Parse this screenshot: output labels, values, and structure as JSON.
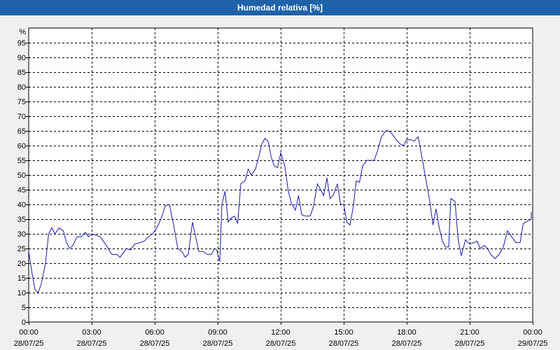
{
  "window": {
    "title": "Humedad relativa [%]"
  },
  "chart_data": {
    "type": "line",
    "title": "Humedad relativa [%]",
    "y_unit_label": "%",
    "ylim": [
      0,
      100
    ],
    "yticks": [
      0,
      5,
      10,
      15,
      20,
      25,
      30,
      35,
      40,
      45,
      50,
      55,
      60,
      65,
      70,
      75,
      80,
      85,
      90,
      95
    ],
    "xlim": [
      0,
      24
    ],
    "xticks": [
      {
        "hour": 0,
        "time": "00:00",
        "date": "28/07/25"
      },
      {
        "hour": 3,
        "time": "03:00",
        "date": "28/07/25"
      },
      {
        "hour": 6,
        "time": "06:00",
        "date": "28/07/25"
      },
      {
        "hour": 9,
        "time": "09:00",
        "date": "28/07/25"
      },
      {
        "hour": 12,
        "time": "12:00",
        "date": "28/07/25"
      },
      {
        "hour": 15,
        "time": "15:00",
        "date": "28/07/25"
      },
      {
        "hour": 18,
        "time": "18:00",
        "date": "28/07/25"
      },
      {
        "hour": 21,
        "time": "21:00",
        "date": "28/07/25"
      },
      {
        "hour": 24,
        "time": "00:00",
        "date": "29/07/25"
      }
    ],
    "grid": true,
    "line_color": "#1a1aa8",
    "series": [
      {
        "name": "",
        "points": [
          [
            0.0,
            24
          ],
          [
            0.15,
            17
          ],
          [
            0.3,
            11
          ],
          [
            0.45,
            10
          ],
          [
            0.6,
            13
          ],
          [
            0.8,
            20
          ],
          [
            0.95,
            30
          ],
          [
            1.1,
            32
          ],
          [
            1.25,
            30
          ],
          [
            1.45,
            32
          ],
          [
            1.65,
            31
          ],
          [
            1.8,
            27
          ],
          [
            1.95,
            25
          ],
          [
            2.1,
            26
          ],
          [
            2.3,
            29
          ],
          [
            2.5,
            29
          ],
          [
            2.7,
            30.5
          ],
          [
            2.85,
            29
          ],
          [
            3.0,
            30
          ],
          [
            3.2,
            29.5
          ],
          [
            3.4,
            29
          ],
          [
            3.7,
            26
          ],
          [
            3.95,
            23
          ],
          [
            4.2,
            23
          ],
          [
            4.35,
            22
          ],
          [
            4.65,
            25
          ],
          [
            4.85,
            24.5
          ],
          [
            5.05,
            26.5
          ],
          [
            5.3,
            27
          ],
          [
            5.5,
            27.5
          ],
          [
            5.7,
            29
          ],
          [
            5.9,
            30
          ],
          [
            6.1,
            32
          ],
          [
            6.3,
            35
          ],
          [
            6.5,
            39.5
          ],
          [
            6.7,
            40
          ],
          [
            6.9,
            33
          ],
          [
            7.1,
            25
          ],
          [
            7.3,
            24
          ],
          [
            7.45,
            22
          ],
          [
            7.6,
            23
          ],
          [
            7.8,
            34
          ],
          [
            7.95,
            29
          ],
          [
            8.1,
            24
          ],
          [
            8.3,
            24
          ],
          [
            8.5,
            23
          ],
          [
            8.7,
            23
          ],
          [
            8.85,
            25
          ],
          [
            8.95,
            24.5
          ],
          [
            9.1,
            20.5
          ],
          [
            9.2,
            40
          ],
          [
            9.35,
            44.5
          ],
          [
            9.5,
            34
          ],
          [
            9.65,
            35.5
          ],
          [
            9.8,
            36
          ],
          [
            9.95,
            33.5
          ],
          [
            10.1,
            47
          ],
          [
            10.3,
            48
          ],
          [
            10.45,
            52
          ],
          [
            10.6,
            50
          ],
          [
            10.8,
            52
          ],
          [
            10.95,
            56
          ],
          [
            11.1,
            60.5
          ],
          [
            11.25,
            62.5
          ],
          [
            11.4,
            61.5
          ],
          [
            11.55,
            56
          ],
          [
            11.7,
            53
          ],
          [
            11.85,
            52.5
          ],
          [
            12.0,
            57.5
          ],
          [
            12.2,
            53
          ],
          [
            12.35,
            45
          ],
          [
            12.5,
            40.5
          ],
          [
            12.7,
            38
          ],
          [
            12.85,
            43
          ],
          [
            13.0,
            36.5
          ],
          [
            13.2,
            36
          ],
          [
            13.4,
            36
          ],
          [
            13.55,
            39
          ],
          [
            13.75,
            47
          ],
          [
            13.9,
            45
          ],
          [
            14.05,
            43
          ],
          [
            14.2,
            49
          ],
          [
            14.35,
            42
          ],
          [
            14.5,
            43
          ],
          [
            14.7,
            47
          ],
          [
            14.85,
            40
          ],
          [
            15.0,
            40
          ],
          [
            15.15,
            34
          ],
          [
            15.3,
            33
          ],
          [
            15.45,
            39
          ],
          [
            15.6,
            48
          ],
          [
            15.75,
            47.5
          ],
          [
            15.9,
            53
          ],
          [
            16.1,
            55
          ],
          [
            16.3,
            55
          ],
          [
            16.45,
            55
          ],
          [
            16.6,
            58
          ],
          [
            16.8,
            63
          ],
          [
            17.0,
            65
          ],
          [
            17.15,
            65
          ],
          [
            17.3,
            64
          ],
          [
            17.5,
            62
          ],
          [
            17.7,
            60.5
          ],
          [
            17.85,
            60
          ],
          [
            18.0,
            62
          ],
          [
            18.2,
            62
          ],
          [
            18.35,
            61.5
          ],
          [
            18.55,
            63
          ],
          [
            18.75,
            55
          ],
          [
            18.95,
            47
          ],
          [
            19.1,
            41
          ],
          [
            19.25,
            33
          ],
          [
            19.4,
            38.5
          ],
          [
            19.55,
            32
          ],
          [
            19.7,
            27.5
          ],
          [
            19.85,
            25.5
          ],
          [
            20.0,
            25.5
          ],
          [
            20.1,
            42
          ],
          [
            20.3,
            41
          ],
          [
            20.45,
            28
          ],
          [
            20.6,
            22.5
          ],
          [
            20.8,
            28
          ],
          [
            21.0,
            26.5
          ],
          [
            21.2,
            27
          ],
          [
            21.35,
            27.5
          ],
          [
            21.5,
            25
          ],
          [
            21.7,
            26
          ],
          [
            21.85,
            25
          ],
          [
            22.0,
            23
          ],
          [
            22.2,
            21.5
          ],
          [
            22.4,
            23
          ],
          [
            22.6,
            25.5
          ],
          [
            22.8,
            31
          ],
          [
            23.0,
            29
          ],
          [
            23.2,
            27
          ],
          [
            23.4,
            27
          ],
          [
            23.55,
            33.5
          ],
          [
            23.8,
            34.5
          ],
          [
            24.0,
            35
          ],
          [
            24.2,
            37
          ],
          [
            24.4,
            37.5
          ]
        ]
      }
    ]
  }
}
